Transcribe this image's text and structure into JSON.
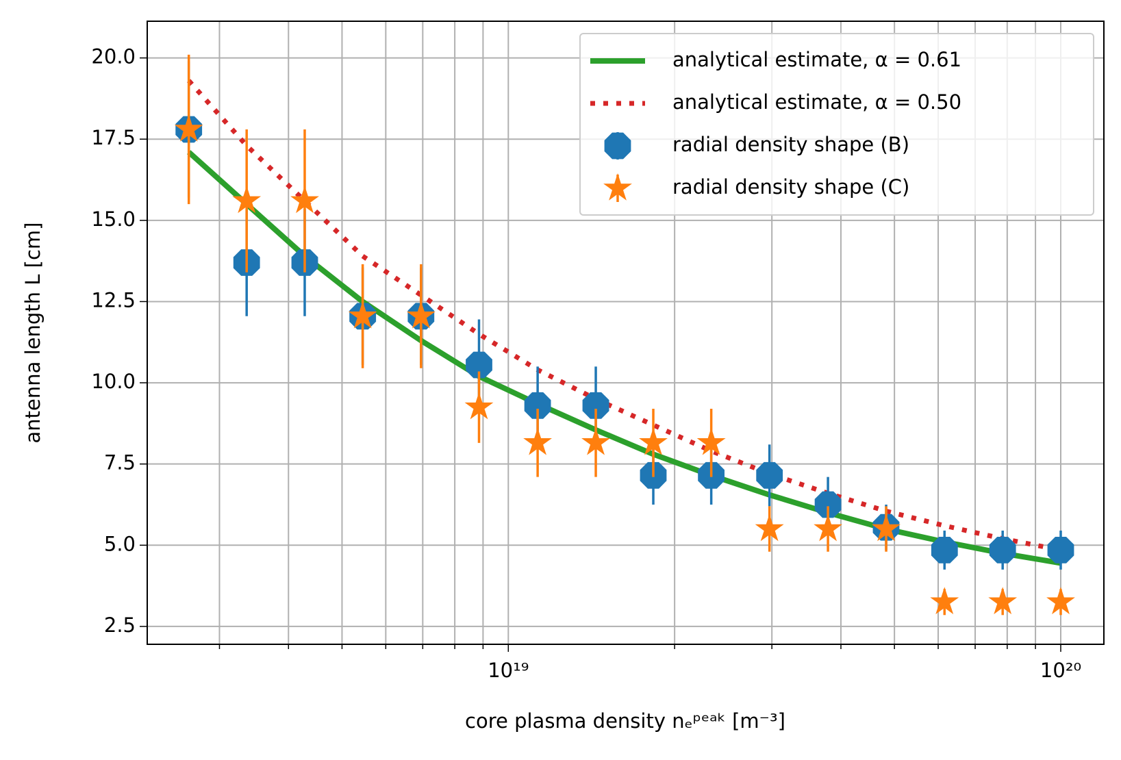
{
  "chart_data": {
    "type": "errorbar",
    "x_label": "core plasma density nₑᵖᵉᵃᵏ [m⁻³]",
    "y_label": "antenna length L [cm]",
    "xscale": "log",
    "xlim": [
      2.22e+18,
      1.197e+20
    ],
    "xticks": [
      {
        "value": 1e+19,
        "label": "10¹⁹"
      },
      {
        "value": 1e+20,
        "label": "10²⁰"
      }
    ],
    "xminor_ticks": [
      3e+18,
      4e+18,
      5e+18,
      6e+18,
      7e+18,
      8e+18,
      9e+18,
      2e+19,
      3e+19,
      4e+19,
      5e+19,
      6e+19,
      7e+19,
      8e+19,
      9e+19
    ],
    "ylim": [
      1.95,
      21.13
    ],
    "yticks": [
      2.5,
      {
        "value": 5,
        "label": "5.0"
      },
      7.5,
      {
        "value": 10,
        "label": "10.0"
      },
      12.5,
      {
        "value": 15,
        "label": "15.0"
      },
      17.5,
      {
        "value": 20,
        "label": "20.0"
      }
    ],
    "grid": true,
    "legend": "upper right",
    "x": [
      2.64e+18,
      3.36e+18,
      4.28e+18,
      5.45e+18,
      6.95e+18,
      8.85e+18,
      1.13e+19,
      1.44e+19,
      1.83e+19,
      2.33e+19,
      2.97e+19,
      3.79e+19,
      4.83e+19,
      6.16e+19,
      7.85e+19,
      1e+20
    ],
    "series": [
      {
        "name": "analytical estimate, α = 0.61",
        "style": "solid",
        "color": "#2ca02c",
        "values": [
          17.1,
          15.5,
          13.9,
          12.5,
          11.3,
          10.2,
          9.35,
          8.55,
          7.8,
          7.15,
          6.55,
          6.0,
          5.5,
          5.1,
          4.75,
          4.45
        ]
      },
      {
        "name": "analytical estimate, α = 0.50",
        "style": "dotted",
        "color": "#d62728",
        "values": [
          19.3,
          17.3,
          15.6,
          13.9,
          12.7,
          11.5,
          10.4,
          9.5,
          8.7,
          7.9,
          7.2,
          6.6,
          6.05,
          5.6,
          5.2,
          4.85
        ]
      },
      {
        "name": "radial density shape (B)",
        "style": "octagon",
        "color": "#1f77b4",
        "values": [
          17.8,
          13.7,
          13.7,
          12.05,
          12.05,
          10.55,
          9.3,
          9.3,
          7.15,
          7.15,
          7.15,
          6.25,
          5.55,
          4.85,
          4.85,
          4.85
        ],
        "errors": [
          2.1,
          1.65,
          1.65,
          1.5,
          1.5,
          1.4,
          1.2,
          1.2,
          0.9,
          0.9,
          0.95,
          0.85,
          0.7,
          0.6,
          0.6,
          0.6
        ]
      },
      {
        "name": "radial density shape (C)",
        "style": "star",
        "color": "#ff7f0e",
        "values": [
          17.8,
          15.6,
          15.6,
          12.05,
          12.05,
          9.25,
          8.15,
          8.15,
          8.15,
          8.15,
          5.5,
          5.5,
          5.5,
          3.25,
          3.25,
          3.25
        ],
        "errors": [
          2.3,
          2.2,
          2.2,
          1.6,
          1.6,
          1.1,
          1.05,
          1.05,
          1.05,
          1.05,
          0.7,
          0.7,
          0.7,
          0.4,
          0.4,
          0.4
        ]
      }
    ]
  }
}
